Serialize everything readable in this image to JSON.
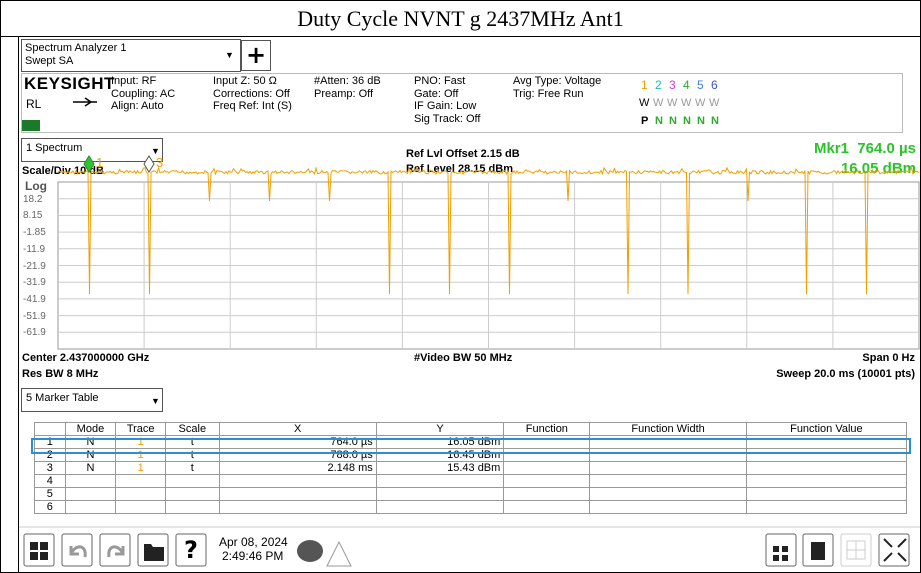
{
  "title": "Duty Cycle NVNT g 2437MHz Ant1",
  "toolbar": {
    "app": "Spectrum Analyzer 1",
    "mode": "Swept SA"
  },
  "settings": {
    "brand": "KEYSIGHT",
    "rl": "RL",
    "lxi": "LXI",
    "columns": [
      [
        "Input: RF",
        "Coupling: AC",
        "Align: Auto"
      ],
      [
        "Input Z: 50 Ω",
        "Corrections: Off",
        "Freq Ref: Int (S)"
      ],
      [
        "#Atten: 36 dB",
        "Preamp: Off"
      ],
      [
        "PNO: Fast",
        "Gate: Off",
        "IF Gain: Low",
        "Sig Track: Off"
      ],
      [
        "Avg Type: Voltage",
        "Trig: Free Run"
      ]
    ]
  },
  "traces": {
    "numbers": [
      "1",
      "2",
      "3",
      "4",
      "5",
      "6"
    ],
    "types": [
      "W",
      "W",
      "W",
      "W",
      "W",
      "W"
    ],
    "detectors": [
      "P",
      "N",
      "N",
      "N",
      "N",
      "N"
    ]
  },
  "spectrum": {
    "window": "1 Spectrum",
    "scale": "Scale/Div 10 dB",
    "ref_offset": "Ref Lvl Offset 2.15 dB",
    "ref_level": "Ref Level 28.15 dBm",
    "marker_readout": "Mkr1  764.0 µs",
    "marker_value": "16.05 dBm",
    "log": "Log",
    "y_labels": [
      "18.2",
      "8.15",
      "-1.85",
      "-11.9",
      "-21.9",
      "-31.9",
      "-41.9",
      "-51.9",
      "-61.9"
    ],
    "center": "Center 2.437000000 GHz",
    "video_bw": "#Video BW 50 MHz",
    "span": "Span 0 Hz",
    "res_bw": "Res BW 8 MHz",
    "sweep": "Sweep 20.0 ms (10001 pts)",
    "markers": [
      "1",
      "3"
    ]
  },
  "marker_table": {
    "window": "5 Marker Table",
    "headers": [
      "Mode",
      "Trace",
      "Scale",
      "X",
      "Y",
      "Function",
      "Function Width",
      "Function Value"
    ],
    "rows": [
      [
        "1",
        "N",
        "1",
        "t",
        "764.0 µs",
        "16.05 dBm"
      ],
      [
        "2",
        "N",
        "1",
        "t",
        "788.0 µs",
        "16.45 dBm"
      ],
      [
        "3",
        "N",
        "1",
        "t",
        "2.148 ms",
        "15.43 dBm"
      ],
      [
        "4"
      ],
      [
        "5"
      ],
      [
        "6"
      ]
    ]
  },
  "taskbar": {
    "date": "Apr 08, 2024",
    "time": "2:49:46 PM"
  }
}
